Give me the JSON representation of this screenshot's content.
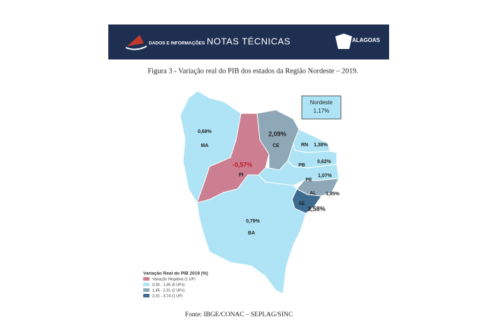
{
  "header": {
    "logo_text": "DADOS E INFORMAÇÕES",
    "title": "NOTAS TÉCNICAS",
    "state_logo": "ALAGOAS"
  },
  "figure": {
    "caption": "Figura 3 - Variação real do PIB dos estados da Região Nordeste – 2019.",
    "regional_box": {
      "label": "Nordeste",
      "value": "1,17%"
    },
    "states": [
      {
        "code": "MA",
        "value": "0,68%"
      },
      {
        "code": "PI",
        "value": "-0,57%"
      },
      {
        "code": "CE",
        "value": "2,09%"
      },
      {
        "code": "RN",
        "value": "1,38%"
      },
      {
        "code": "PB",
        "value": "0,62%"
      },
      {
        "code": "PE",
        "value": "1,07%"
      },
      {
        "code": "AL",
        "value": "1,95%"
      },
      {
        "code": "SE",
        "value": "3,58%"
      },
      {
        "code": "BA",
        "value": "0,79%"
      }
    ],
    "legend": {
      "title": "Variação Real do PIB 2019 (%)",
      "entries": [
        "Variação Negativa (1 UF)",
        "0,00 - 1,45 (5 UFs)",
        "1,45 - 2,31 (2 UFs)",
        "2,31 - 3,74 (1 UF)"
      ]
    }
  },
  "source": "Fonte: IBGE/CONAC – SEPLAG/SINC"
}
